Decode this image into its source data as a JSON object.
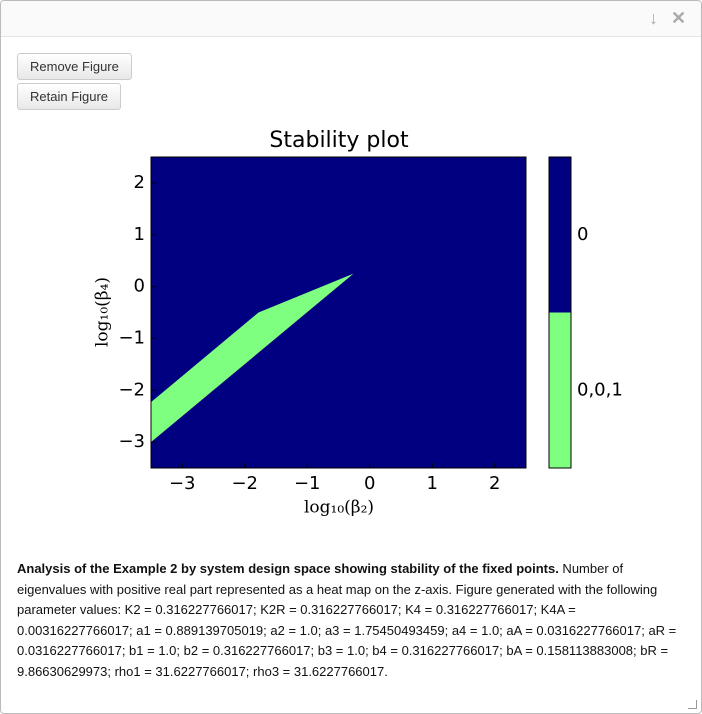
{
  "buttons": [
    "Remove Figure",
    "Retain Figure"
  ],
  "chart_data": {
    "type": "region",
    "title": "Stability plot",
    "xlabel": "log₁₀(β₂)",
    "ylabel": "log₁₀(β₄)",
    "xlim": [
      -3.5,
      2.5
    ],
    "ylim": [
      -3.5,
      2.5
    ],
    "xticks": [
      {
        "value": -3,
        "label": "−3"
      },
      {
        "value": -2,
        "label": "−2"
      },
      {
        "value": -1,
        "label": "−1"
      },
      0,
      1,
      2
    ],
    "yticks": [
      {
        "value": -3,
        "label": "−3"
      },
      {
        "value": -2,
        "label": "−2"
      },
      {
        "value": -1,
        "label": "−1"
      },
      0,
      1,
      2
    ],
    "regions": [
      {
        "name": "0",
        "color": "#000080"
      },
      {
        "name": "0,0,1",
        "color": "#7fff7f",
        "x": [
          -3.5,
          -1.78,
          -0.26,
          -3.5
        ],
        "y": [
          -2.23,
          -0.5,
          0.25,
          -3.0
        ]
      }
    ]
  },
  "caption": {
    "bold": "Analysis of the Example 2 by system design space showing stability of the fixed points.",
    "text": " Number of eigenvalues with positive real part represented as a heat map on the z-axis. Figure generated with the following parameter values: K2 = 0.316227766017; K2R = 0.316227766017; K4 = 0.316227766017; K4A = 0.00316227766017; a1 = 0.889139705019; a2 = 1.0; a3 = 1.75450493459; a4 = 1.0; aA = 0.0316227766017; aR = 0.0316227766017; b1 = 1.0; b2 = 0.316227766017; b3 = 1.0; b4 = 0.316227766017; bA = 0.158113883008; bR = 9.86630629973; rho1 = 31.6227766017; rho3 = 31.6227766017."
  }
}
